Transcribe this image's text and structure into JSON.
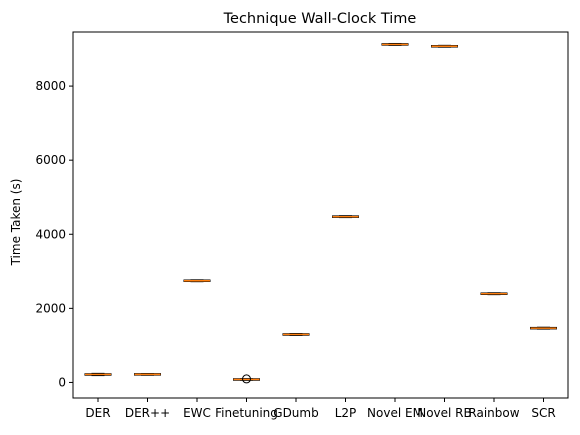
{
  "chart_data": {
    "type": "box",
    "title": "Technique Wall-Clock Time",
    "xlabel": "",
    "ylabel": "Time Taken (s)",
    "ylim": [
      -420,
      9460
    ],
    "yticks": [
      0,
      2000,
      4000,
      6000,
      8000
    ],
    "categories": [
      "DER",
      "DER++",
      "EWC",
      "Finetuning",
      "GDumb",
      "L2P",
      "Novel EM",
      "Novel RB",
      "Rainbow",
      "SCR"
    ],
    "boxes": [
      {
        "category": "DER",
        "whislo": 185,
        "q1": 205,
        "med": 215,
        "q3": 225,
        "whishi": 245,
        "fliers": []
      },
      {
        "category": "DER++",
        "whislo": 195,
        "q1": 210,
        "med": 218,
        "q3": 226,
        "whishi": 240,
        "fliers": []
      },
      {
        "category": "EWC",
        "whislo": 2720,
        "q1": 2735,
        "med": 2745,
        "q3": 2755,
        "whishi": 2770,
        "fliers": []
      },
      {
        "category": "Finetuning",
        "whislo": 60,
        "q1": 72,
        "med": 80,
        "q3": 88,
        "whishi": 100,
        "fliers": [
          95
        ]
      },
      {
        "category": "GDumb",
        "whislo": 1270,
        "q1": 1285,
        "med": 1295,
        "q3": 1305,
        "whishi": 1320,
        "fliers": []
      },
      {
        "category": "L2P",
        "whislo": 4450,
        "q1": 4465,
        "med": 4475,
        "q3": 4485,
        "whishi": 4500,
        "fliers": []
      },
      {
        "category": "Novel EM",
        "whislo": 9100,
        "q1": 9115,
        "med": 9125,
        "q3": 9135,
        "whishi": 9150,
        "fliers": []
      },
      {
        "category": "Novel RB",
        "whislo": 9050,
        "q1": 9065,
        "med": 9075,
        "q3": 9085,
        "whishi": 9100,
        "fliers": []
      },
      {
        "category": "Rainbow",
        "whislo": 2370,
        "q1": 2385,
        "med": 2395,
        "q3": 2405,
        "whishi": 2420,
        "fliers": []
      },
      {
        "category": "SCR",
        "whislo": 1440,
        "q1": 1455,
        "med": 1465,
        "q3": 1475,
        "whishi": 1490,
        "fliers": []
      }
    ],
    "colors": {
      "box": "#000000",
      "median": "#ff7f0e",
      "background": "#ffffff"
    },
    "grid": false,
    "legend": "none"
  }
}
